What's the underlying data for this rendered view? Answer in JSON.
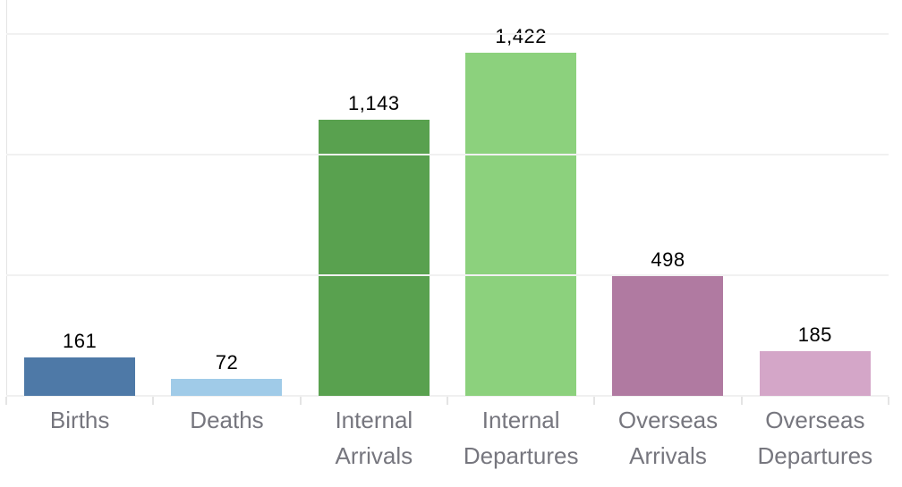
{
  "chart_data": {
    "type": "bar",
    "title": "",
    "xlabel": "",
    "ylabel": "",
    "categories": [
      "Births",
      "Deaths",
      "Internal\nArrivals",
      "Internal\nDepartures",
      "Overseas\nArrivals",
      "Overseas\nDepartures"
    ],
    "values": [
      161,
      72,
      1143,
      1422,
      498,
      185
    ],
    "value_labels": [
      "161",
      "72",
      "1,143",
      "1,422",
      "498",
      "185"
    ],
    "bar_colors": [
      "#4E79A7",
      "#A0CBE8",
      "#59A14F",
      "#8CD17D",
      "#B07AA1",
      "#D4A6C8"
    ],
    "ylim": [
      0,
      1500
    ],
    "gridline_values": [
      500,
      1000,
      1500
    ],
    "grid": "horizontal-only",
    "legend": "none",
    "value_labels_shown": true,
    "y_tick_labels_shown": false
  },
  "style": {
    "background": "#ffffff",
    "grid_color": "#f1f1f1",
    "axis_color": "#e4e4e4",
    "baseline_color": "#f0f0f0",
    "value_label_color": "#000000",
    "category_label_color": "#76767e"
  }
}
